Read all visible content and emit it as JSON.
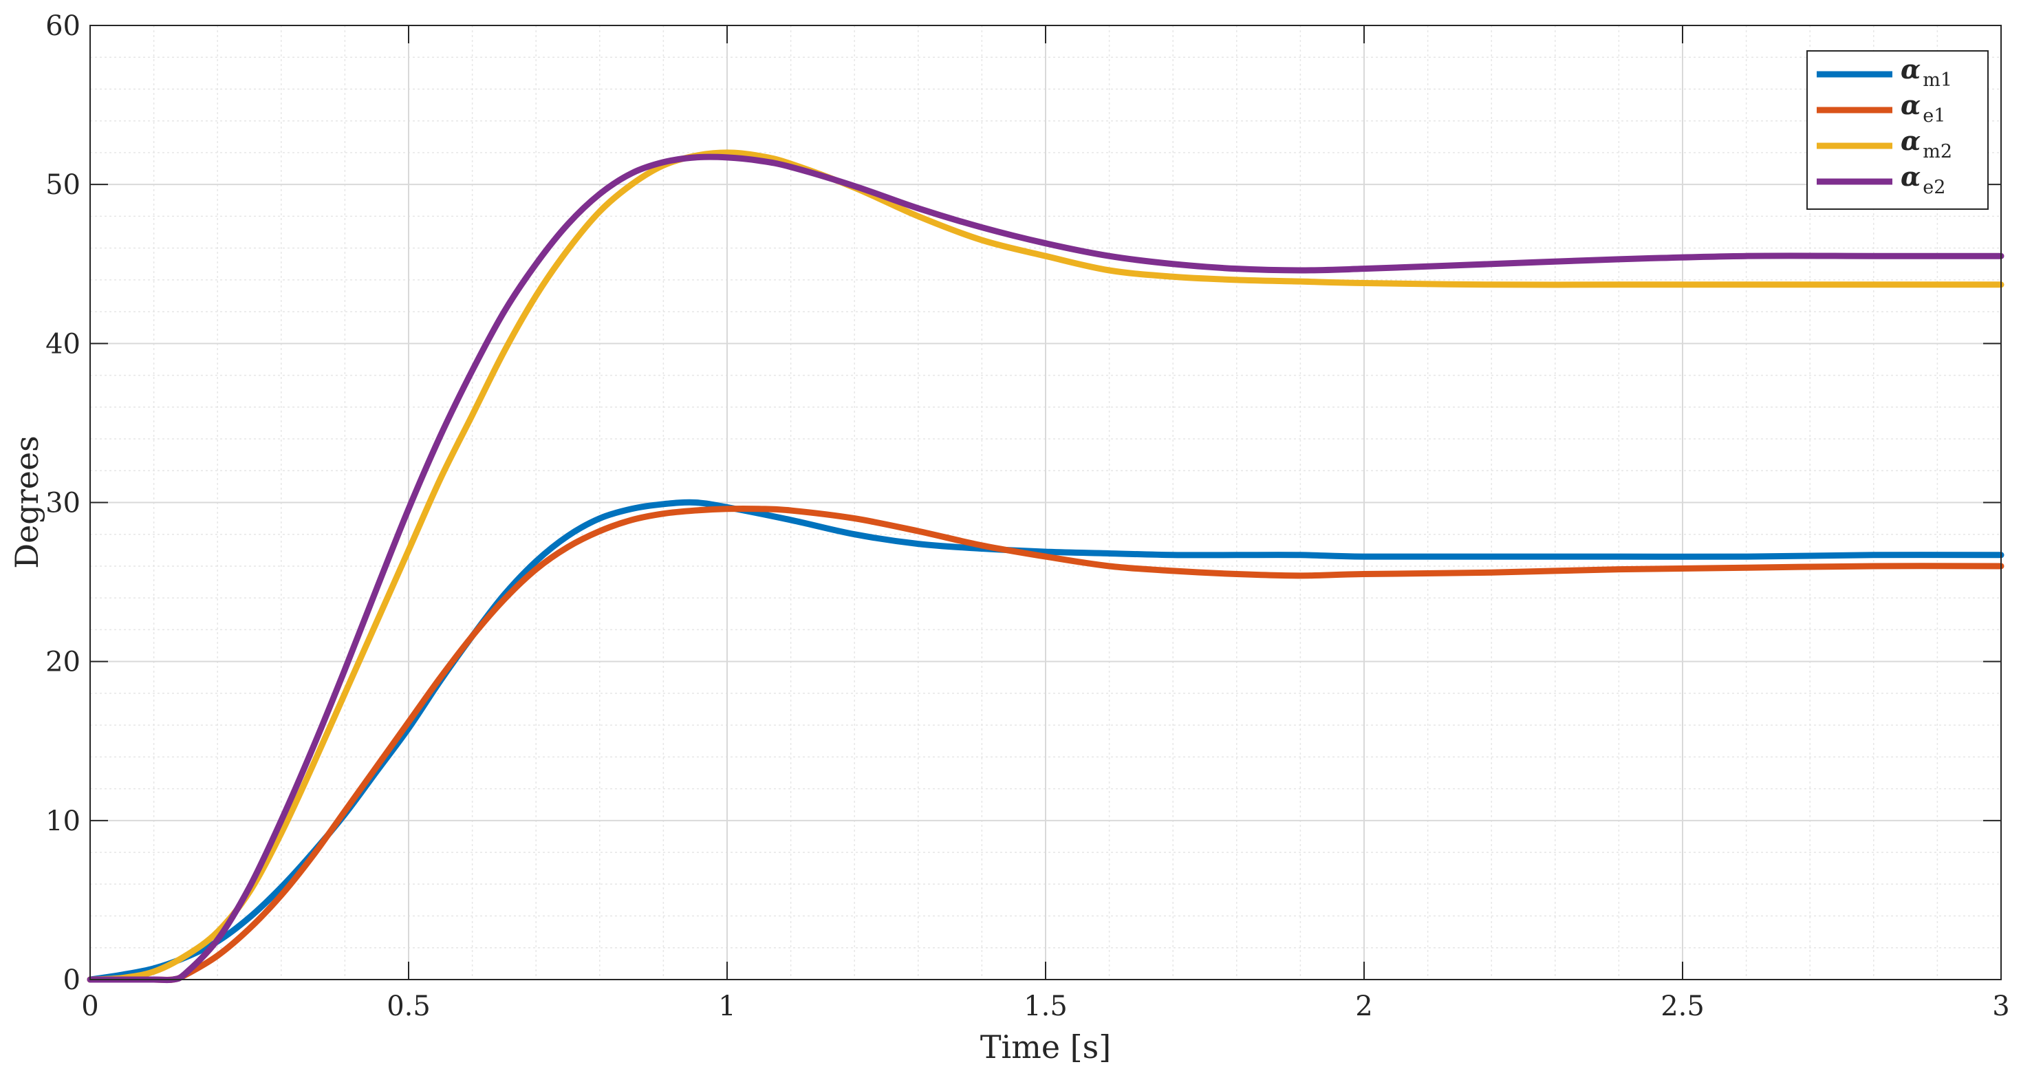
{
  "chart_data": {
    "type": "line",
    "title": "",
    "xlabel": "Time [s]",
    "ylabel": "Degrees",
    "xlim": [
      0,
      3
    ],
    "ylim": [
      0,
      60
    ],
    "xticks": [
      0,
      0.5,
      1,
      1.5,
      2,
      2.5,
      3
    ],
    "xtick_labels": [
      "0",
      "0.5",
      "1",
      "1.5",
      "2",
      "2.5",
      "3"
    ],
    "yticks": [
      0,
      10,
      20,
      30,
      40,
      50,
      60
    ],
    "ytick_labels": [
      "0",
      "10",
      "20",
      "30",
      "40",
      "50",
      "60"
    ],
    "grid": true,
    "minor_grid": true,
    "legend_position": "top-right",
    "series": [
      {
        "name_symbol": "α",
        "name_sub": "m1",
        "color": "#0072BD",
        "x": [
          0,
          0.05,
          0.1,
          0.15,
          0.2,
          0.25,
          0.3,
          0.35,
          0.4,
          0.45,
          0.5,
          0.55,
          0.6,
          0.65,
          0.7,
          0.75,
          0.8,
          0.85,
          0.9,
          0.95,
          1.0,
          1.1,
          1.2,
          1.3,
          1.4,
          1.5,
          1.6,
          1.7,
          1.8,
          1.9,
          2.0,
          2.2,
          2.4,
          2.6,
          2.8,
          3.0
        ],
        "y": [
          0,
          0.3,
          0.7,
          1.4,
          2.4,
          3.9,
          5.8,
          8.0,
          10.4,
          13.1,
          15.8,
          18.8,
          21.6,
          24.2,
          26.3,
          27.9,
          29.0,
          29.6,
          29.9,
          30.0,
          29.7,
          28.9,
          28.0,
          27.4,
          27.1,
          26.9,
          26.8,
          26.7,
          26.7,
          26.7,
          26.6,
          26.6,
          26.6,
          26.6,
          26.7,
          26.7
        ]
      },
      {
        "name_symbol": "α",
        "name_sub": "e1",
        "color": "#D95319",
        "x": [
          0,
          0.05,
          0.1,
          0.13,
          0.15,
          0.2,
          0.25,
          0.3,
          0.35,
          0.4,
          0.45,
          0.5,
          0.55,
          0.6,
          0.65,
          0.7,
          0.75,
          0.8,
          0.85,
          0.9,
          0.95,
          1.0,
          1.05,
          1.1,
          1.2,
          1.3,
          1.4,
          1.5,
          1.6,
          1.7,
          1.8,
          1.9,
          2.0,
          2.2,
          2.4,
          2.6,
          2.8,
          3.0
        ],
        "y": [
          0,
          0,
          0,
          0,
          0.3,
          1.5,
          3.2,
          5.3,
          7.8,
          10.6,
          13.4,
          16.2,
          19.0,
          21.6,
          23.9,
          25.8,
          27.2,
          28.2,
          28.9,
          29.3,
          29.5,
          29.6,
          29.6,
          29.5,
          29.0,
          28.2,
          27.3,
          26.6,
          26.0,
          25.7,
          25.5,
          25.4,
          25.5,
          25.6,
          25.8,
          25.9,
          26.0,
          26.0
        ]
      },
      {
        "name_symbol": "α",
        "name_sub": "m2",
        "color": "#EDB120",
        "x": [
          0,
          0.05,
          0.1,
          0.15,
          0.2,
          0.25,
          0.3,
          0.35,
          0.4,
          0.45,
          0.5,
          0.55,
          0.6,
          0.65,
          0.7,
          0.75,
          0.8,
          0.85,
          0.9,
          0.95,
          1.0,
          1.05,
          1.1,
          1.2,
          1.3,
          1.4,
          1.5,
          1.6,
          1.7,
          1.8,
          1.9,
          2.0,
          2.2,
          2.4,
          2.6,
          2.8,
          3.0
        ],
        "y": [
          0,
          0.1,
          0.5,
          1.5,
          3.0,
          5.5,
          9.2,
          13.5,
          18.0,
          22.5,
          27.0,
          31.5,
          35.5,
          39.5,
          43.0,
          45.9,
          48.3,
          50.0,
          51.2,
          51.8,
          52.0,
          51.8,
          51.3,
          49.8,
          48.0,
          46.5,
          45.5,
          44.6,
          44.2,
          44.0,
          43.9,
          43.8,
          43.7,
          43.7,
          43.7,
          43.7,
          43.7
        ]
      },
      {
        "name_symbol": "α",
        "name_sub": "e2",
        "color": "#7E2F8E",
        "x": [
          0,
          0.05,
          0.1,
          0.13,
          0.15,
          0.2,
          0.25,
          0.3,
          0.35,
          0.4,
          0.45,
          0.5,
          0.55,
          0.6,
          0.65,
          0.7,
          0.75,
          0.8,
          0.85,
          0.9,
          0.95,
          1.0,
          1.05,
          1.1,
          1.2,
          1.3,
          1.4,
          1.5,
          1.6,
          1.7,
          1.8,
          1.9,
          2.0,
          2.2,
          2.4,
          2.6,
          2.8,
          3.0
        ],
        "y": [
          0,
          0,
          0,
          0,
          0.4,
          2.5,
          5.8,
          10.0,
          14.6,
          19.5,
          24.6,
          29.6,
          34.2,
          38.3,
          42.0,
          45.0,
          47.5,
          49.4,
          50.7,
          51.4,
          51.7,
          51.7,
          51.5,
          51.1,
          49.9,
          48.5,
          47.3,
          46.3,
          45.5,
          45.0,
          44.7,
          44.6,
          44.7,
          45.0,
          45.3,
          45.5,
          45.5,
          45.5
        ]
      }
    ]
  }
}
